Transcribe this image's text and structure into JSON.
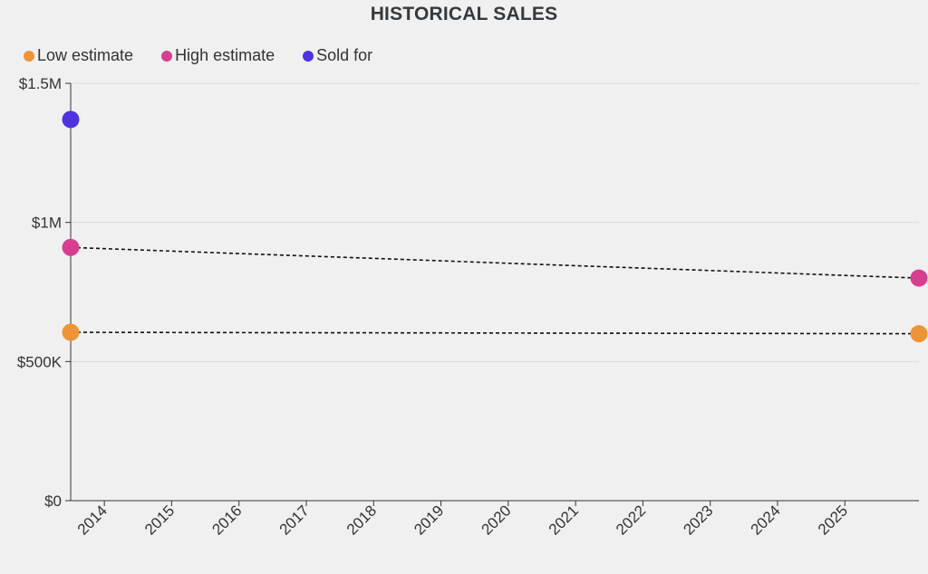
{
  "chart_data": {
    "type": "scatter",
    "title": "HISTORICAL SALES",
    "xlabel": "",
    "ylabel": "",
    "ylim": [
      0,
      1500000
    ],
    "y_ticks": [
      {
        "value": 0,
        "label": "$0"
      },
      {
        "value": 500000,
        "label": "$500K"
      },
      {
        "value": 1000000,
        "label": "$1M"
      },
      {
        "value": 1500000,
        "label": "$1.5M"
      }
    ],
    "xlim": [
      2013.5,
      2026.1
    ],
    "x_ticks": [
      {
        "value": 2014,
        "label": "2014"
      },
      {
        "value": 2015,
        "label": "2015"
      },
      {
        "value": 2016,
        "label": "2016"
      },
      {
        "value": 2017,
        "label": "2017"
      },
      {
        "value": 2018,
        "label": "2018"
      },
      {
        "value": 2019,
        "label": "2019"
      },
      {
        "value": 2020,
        "label": "2020"
      },
      {
        "value": 2021,
        "label": "2021"
      },
      {
        "value": 2022,
        "label": "2022"
      },
      {
        "value": 2023,
        "label": "2023"
      },
      {
        "value": 2024,
        "label": "2024"
      },
      {
        "value": 2025,
        "label": "2025"
      }
    ],
    "grid": true,
    "legend_position": "top-left",
    "series": [
      {
        "name": "Low estimate",
        "color": "#ee9436",
        "connect": true,
        "points": [
          {
            "x": 2013.5,
            "y": 605000
          },
          {
            "x": 2026.1,
            "y": 600000
          }
        ]
      },
      {
        "name": "High estimate",
        "color": "#d63f8f",
        "connect": true,
        "points": [
          {
            "x": 2013.5,
            "y": 910000
          },
          {
            "x": 2026.1,
            "y": 800000
          }
        ]
      },
      {
        "name": "Sold for",
        "color": "#4f33e0",
        "connect": false,
        "points": [
          {
            "x": 2013.5,
            "y": 1370000
          }
        ]
      }
    ]
  }
}
